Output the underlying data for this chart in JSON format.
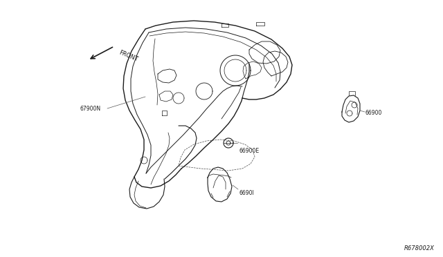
{
  "background_color": "#ffffff",
  "diagram_id": "R678002X",
  "line_color": "#1a1a1a",
  "text_color": "#1a1a1a",
  "dashed_color": "#444444",
  "label_67900N": "67900N",
  "label_66900E": "66900E",
  "label_66900": "66900",
  "label_66901": "6690I",
  "label_front": "FRONT",
  "fig_width": 6.4,
  "fig_height": 3.72,
  "dpi": 100
}
